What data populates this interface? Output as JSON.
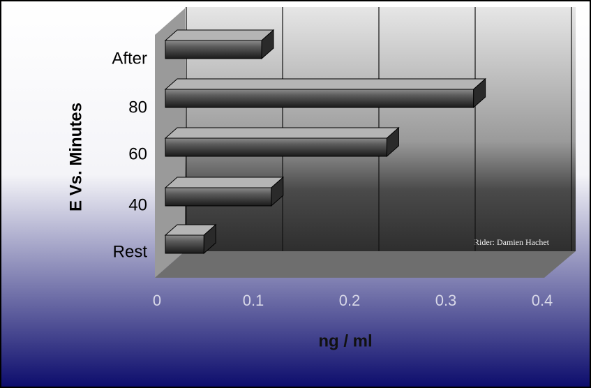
{
  "chart_data": {
    "type": "bar3d_horizontal",
    "x_label": "ng / ml",
    "y_label": "E Vs. Minutes",
    "categories": [
      "Rest",
      "40",
      "60",
      "80",
      "After"
    ],
    "values": [
      0.04,
      0.11,
      0.23,
      0.32,
      0.1
    ],
    "xlim": [
      0,
      0.4
    ],
    "xticks": [
      0,
      0.1,
      0.2,
      0.3,
      0.4
    ],
    "grid": true,
    "color": "#3a3a3a",
    "annotation": "Rider: Damien Hachet"
  }
}
